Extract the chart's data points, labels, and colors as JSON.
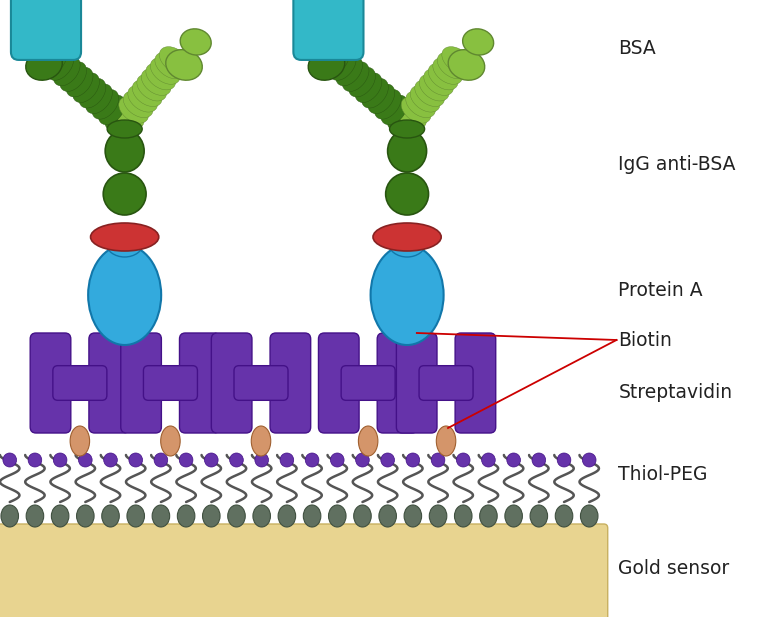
{
  "bg_color": "#ffffff",
  "gold_color": "#e8d490",
  "gold_edge": "#c8b060",
  "thiol_line_color": "#555555",
  "bead_color": "#607060",
  "bead_edge": "#405040",
  "strep_color": "#6633aa",
  "strep_edge": "#441188",
  "biotin_color": "#d4956a",
  "biotin_edge": "#a06030",
  "protein_a_color": "#33aadd",
  "protein_a_edge": "#1177aa",
  "linker_color": "#cc3333",
  "linker_edge": "#882222",
  "ab_dark": "#3a7a18",
  "ab_light": "#88c040",
  "ab_edge_dark": "#285510",
  "ab_edge_light": "#608830",
  "bsa_color": "#33b8c8",
  "bsa_edge": "#1a8898",
  "label_color": "#222222",
  "label_fontsize": 13.5,
  "red_line_color": "#cc0000",
  "label_bsa": "BSA",
  "label_igg": "IgG anti-BSA",
  "label_protein_a": "Protein A",
  "label_biotin": "Biotin",
  "label_streptavidin": "Streptavidin",
  "label_thiol_peg": "Thiol-PEG",
  "label_gold": "Gold sensor"
}
